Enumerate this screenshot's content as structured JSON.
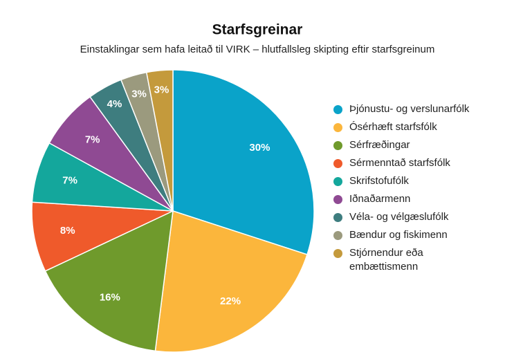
{
  "chart_data": {
    "type": "pie",
    "title": "Starfsgreinar",
    "subtitle": "Einstaklingar sem hafa leitað til VIRK – hlutfallsleg skipting eftir starfsgreinum",
    "categories": [
      "Þjónustu- og verslunarfólk",
      "Ósérhæft starfsfólk",
      "Sérfræðingar",
      "Sérmenntað starfsfólk",
      "Skrifstofufólk",
      "Iðnaðarmenn",
      "Véla- og vélgæslufólk",
      "Bændur og fiskimenn",
      "Stjórnendur eða embættismenn"
    ],
    "values": [
      30,
      22,
      16,
      8,
      7,
      7,
      4,
      3,
      3
    ],
    "value_labels": [
      "30%",
      "22%",
      "16%",
      "8%",
      "7%",
      "7%",
      "4%",
      "3%",
      "3%"
    ],
    "colors": [
      "#0aa3c9",
      "#fbb63c",
      "#6f9a2c",
      "#ef5a2b",
      "#14a79c",
      "#8f4a93",
      "#3e7d7f",
      "#9b9a7e",
      "#c49a3c"
    ],
    "legend": "right"
  }
}
